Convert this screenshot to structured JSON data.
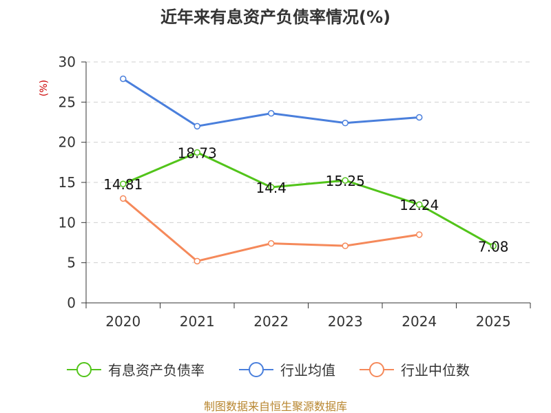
{
  "chart_data": {
    "type": "line",
    "title": "近年来有息资产负债率情况(%)",
    "ylabel": "(%)",
    "xlabel": "",
    "categories": [
      "2020",
      "2021",
      "2022",
      "2023",
      "2024",
      "2025"
    ],
    "ylim": [
      0,
      30
    ],
    "yticks": [
      0,
      5,
      10,
      15,
      20,
      25,
      30
    ],
    "grid": true,
    "legend_position": "bottom",
    "series": [
      {
        "name": "有息资产负债率",
        "color": "#52c41a",
        "values": [
          14.81,
          18.73,
          14.4,
          15.25,
          12.24,
          7.08
        ],
        "labels": [
          "14.81",
          "18.73",
          "14.4",
          "15.25",
          "12.24",
          "7.08"
        ]
      },
      {
        "name": "行业均值",
        "color": "#4a7fdc",
        "values": [
          27.9,
          22.0,
          23.6,
          22.4,
          23.1,
          null
        ]
      },
      {
        "name": "行业中位数",
        "color": "#f5895a",
        "values": [
          13.0,
          5.2,
          7.4,
          7.1,
          8.5,
          null
        ]
      }
    ]
  },
  "source": "制图数据来自恒生聚源数据库"
}
